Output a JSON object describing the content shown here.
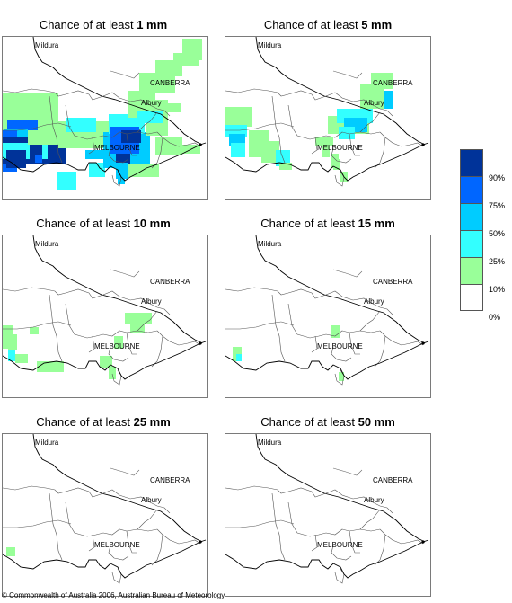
{
  "panels": [
    {
      "prefix": "Chance of at least ",
      "amount": "1 mm"
    },
    {
      "prefix": "Chance of at least ",
      "amount": "5 mm"
    },
    {
      "prefix": "Chance of at least ",
      "amount": "10 mm"
    },
    {
      "prefix": "Chance of at least ",
      "amount": "15 mm"
    },
    {
      "prefix": "Chance of at least ",
      "amount": "25 mm"
    },
    {
      "prefix": "Chance of at least ",
      "amount": "50 mm"
    }
  ],
  "map_labels": {
    "mildura": "Mildura",
    "canberra": "CANBERRA",
    "albury": "Albury",
    "melbourne": "MELBOURNE"
  },
  "legend": {
    "colors": [
      "#003399",
      "#0066ff",
      "#00ccff",
      "#33ffff",
      "#99ff99",
      "#ffffff"
    ],
    "labels": [
      "90%",
      "75%",
      "50%",
      "25%",
      "10%",
      "0%"
    ]
  },
  "footer": "© Commonwealth of Australia 2006, Australian Bureau of Meteorology"
}
